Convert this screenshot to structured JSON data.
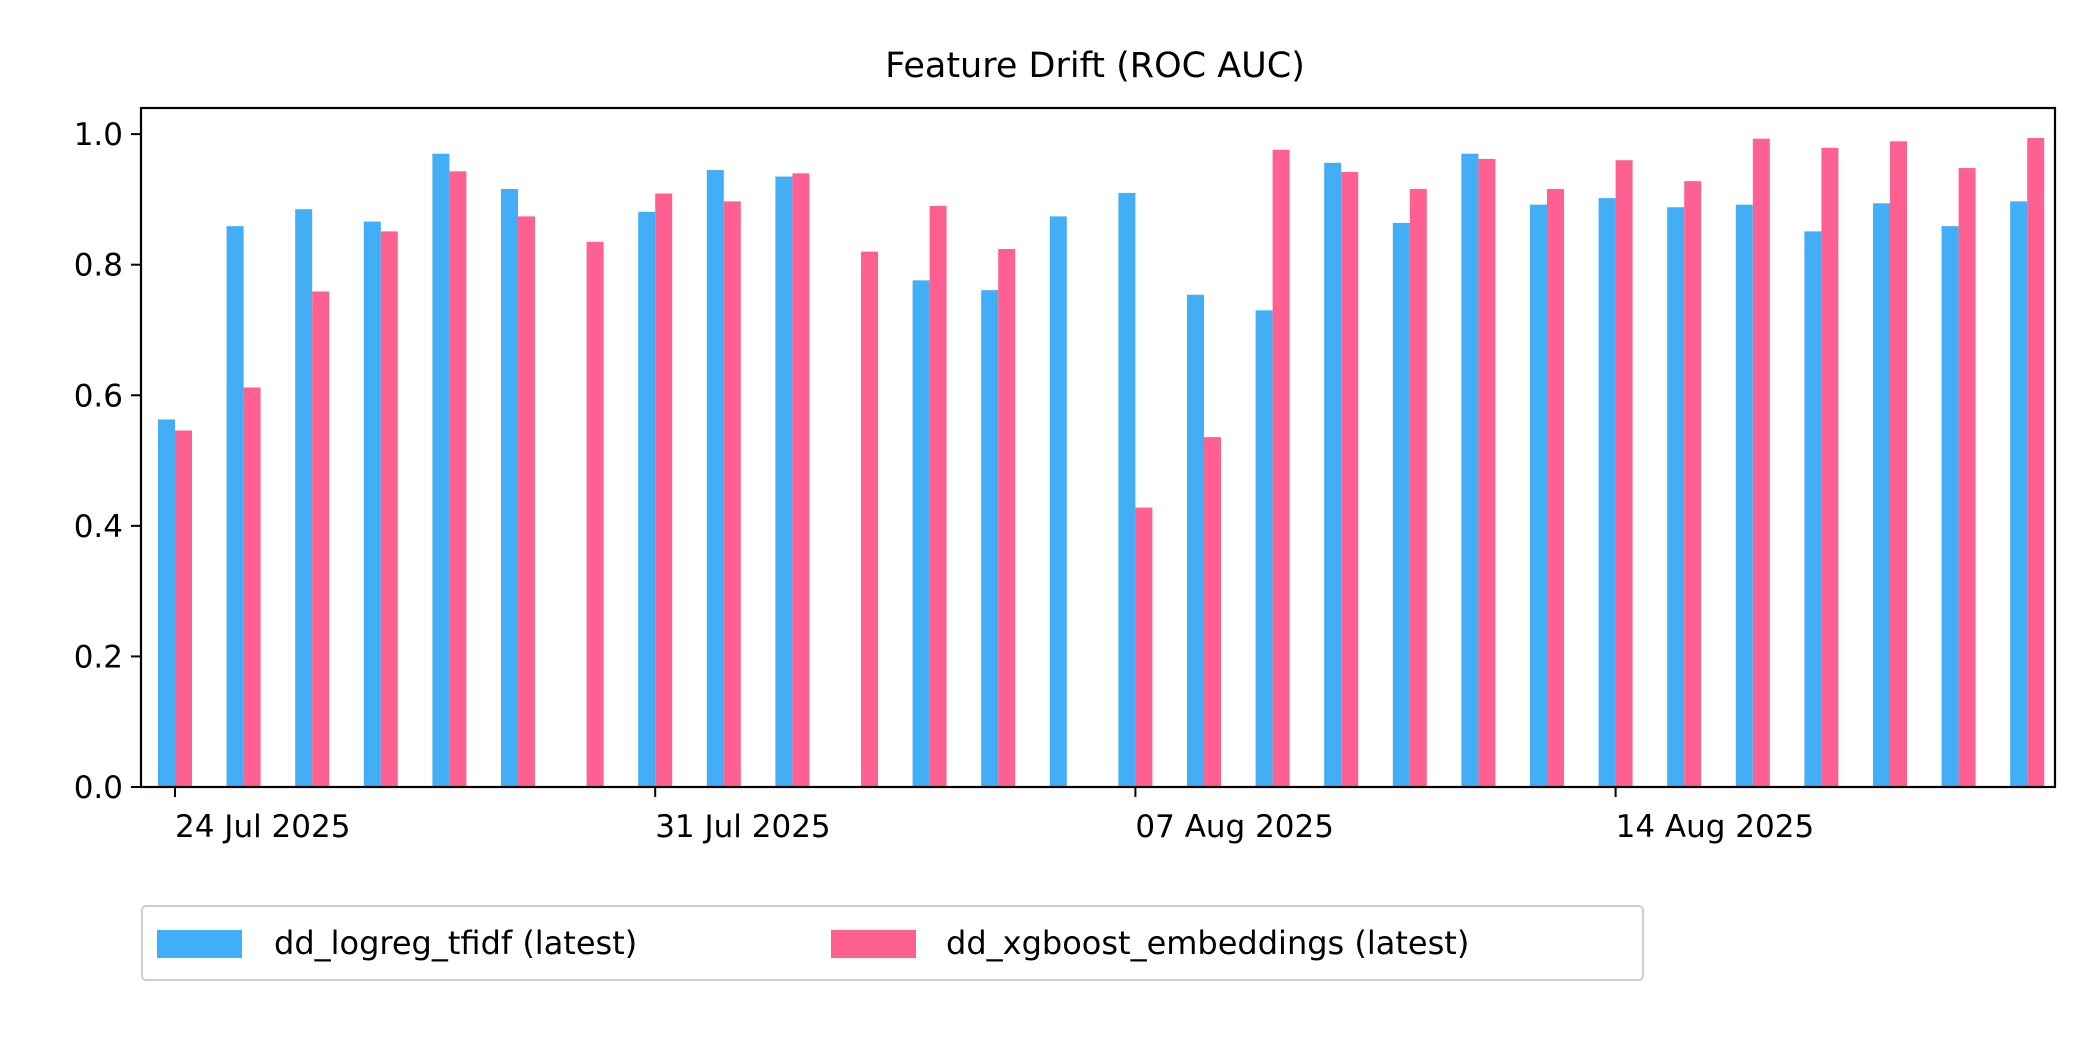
{
  "chart_data": {
    "type": "bar",
    "title": "Feature Drift (ROC AUC)",
    "xlabel": "",
    "ylabel": "",
    "ylim": [
      0,
      1.04
    ],
    "y_ticks": [
      0.0,
      0.2,
      0.4,
      0.6,
      0.8,
      1.0
    ],
    "y_tick_labels": [
      "0.0",
      "0.2",
      "0.4",
      "0.6",
      "0.8",
      "1.0"
    ],
    "x": [
      "2025-07-24",
      "2025-07-25",
      "2025-07-26",
      "2025-07-27",
      "2025-07-28",
      "2025-07-29",
      "2025-07-30",
      "2025-07-31",
      "2025-08-01",
      "2025-08-02",
      "2025-08-03",
      "2025-08-04",
      "2025-08-05",
      "2025-08-06",
      "2025-08-07",
      "2025-08-08",
      "2025-08-09",
      "2025-08-10",
      "2025-08-11",
      "2025-08-12",
      "2025-08-13",
      "2025-08-14",
      "2025-08-15",
      "2025-08-16",
      "2025-08-17",
      "2025-08-18",
      "2025-08-19",
      "2025-08-20"
    ],
    "x_ticks": [
      "2025-07-24",
      "2025-07-31",
      "2025-08-07",
      "2025-08-14"
    ],
    "x_tick_labels": [
      "24 Jul 2025",
      "31 Jul 2025",
      "07 Aug 2025",
      "14 Aug 2025"
    ],
    "series": [
      {
        "name": "dd_logreg_tfidf (latest)",
        "color": "#42AEF5",
        "values": [
          0.563,
          0.859,
          0.885,
          0.866,
          0.97,
          0.916,
          null,
          0.881,
          0.945,
          0.935,
          null,
          0.776,
          0.761,
          0.874,
          0.91,
          0.754,
          0.73,
          0.956,
          0.864,
          0.97,
          0.892,
          0.902,
          0.888,
          0.892,
          0.851,
          0.894,
          0.859,
          0.897
        ]
      },
      {
        "name": "dd_xgboost_embeddings (latest)",
        "color": "#FF6092",
        "values": [
          0.546,
          0.612,
          0.759,
          0.851,
          0.943,
          0.874,
          0.835,
          0.909,
          0.897,
          0.94,
          0.82,
          0.89,
          0.824,
          null,
          0.428,
          0.536,
          0.976,
          0.942,
          0.916,
          0.962,
          0.916,
          0.96,
          0.928,
          0.993,
          0.979,
          0.989,
          0.948,
          0.994
        ]
      }
    ],
    "grid": false,
    "legend_position": "bottom-left"
  }
}
